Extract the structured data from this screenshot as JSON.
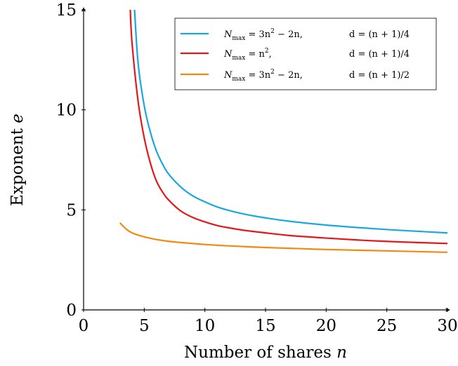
{
  "chart_data": {
    "type": "line",
    "xlabel": "Number of shares",
    "xlabel_var": "n",
    "ylabel": "Exponent",
    "ylabel_var": "e",
    "xlim": [
      0,
      30
    ],
    "ylim": [
      0,
      15
    ],
    "xticks": [
      "0",
      "5",
      "10",
      "15",
      "20",
      "25",
      "30"
    ],
    "yticks": [
      "0",
      "5",
      "10",
      "15"
    ],
    "grid": false,
    "legend_position": "top-right",
    "series": [
      {
        "color": "#1aa7e0",
        "legend": {
          "n": "N",
          "sub": "max",
          "rhs": " = 3n",
          "sup": "2",
          "rhs2": " − 2n,",
          "d": "d = (n + 1)/4"
        },
        "x": [
          4.2,
          4.5,
          5,
          5.5,
          6,
          6.5,
          7,
          8,
          9,
          10,
          11,
          12,
          13,
          14,
          15,
          17,
          20,
          23,
          26,
          30
        ],
        "y": [
          15.0,
          12.3,
          10.2,
          8.9,
          7.95,
          7.3,
          6.8,
          6.15,
          5.7,
          5.4,
          5.15,
          4.97,
          4.82,
          4.7,
          4.6,
          4.43,
          4.24,
          4.1,
          3.98,
          3.85
        ]
      },
      {
        "color": "#e3181b",
        "legend": {
          "n": "N",
          "sub": "max",
          "rhs": " = n",
          "sup": "2",
          "rhs2": ",",
          "d": "d = (n + 1)/4"
        },
        "x": [
          3.85,
          4,
          4.5,
          5,
          5.5,
          6,
          6.5,
          7,
          8,
          9,
          10,
          11,
          12,
          13,
          14,
          15,
          17,
          20,
          23,
          26,
          30
        ],
        "y": [
          15.0,
          13.3,
          10.4,
          8.6,
          7.35,
          6.45,
          5.9,
          5.5,
          4.95,
          4.62,
          4.4,
          4.22,
          4.1,
          4.0,
          3.92,
          3.85,
          3.72,
          3.59,
          3.48,
          3.4,
          3.32
        ]
      },
      {
        "color": "#f5880f",
        "legend": {
          "n": "N",
          "sub": "max",
          "rhs": " = 3n",
          "sup": "2",
          "rhs2": " − 2n,",
          "d": "d = (n + 1)/2"
        },
        "x": [
          3,
          3.5,
          4,
          5,
          6,
          7,
          8,
          10,
          12,
          15,
          18,
          20,
          25,
          30
        ],
        "y": [
          4.35,
          4.05,
          3.85,
          3.65,
          3.52,
          3.43,
          3.37,
          3.27,
          3.2,
          3.12,
          3.06,
          3.02,
          2.95,
          2.88
        ]
      }
    ]
  }
}
